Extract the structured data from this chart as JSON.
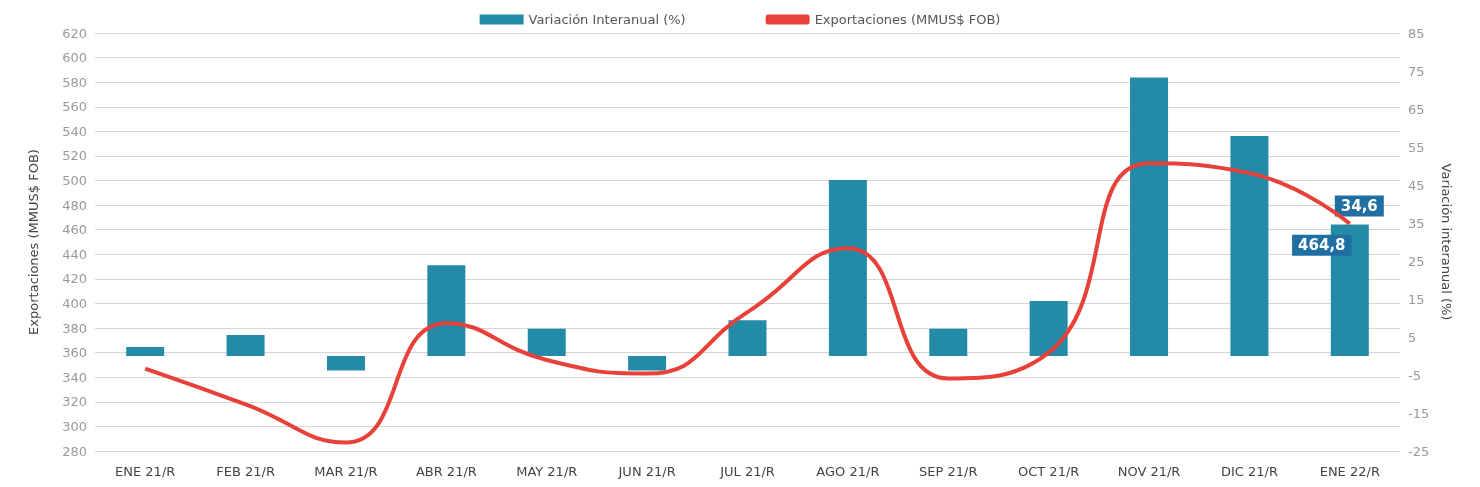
{
  "chart_data": {
    "type": "bar",
    "xlabel": null,
    "ylabel": "Exportaciones (MMUS$ FOB)",
    "y2label": "Variación interanual (%)",
    "categories": [
      "ENE 21/R",
      "FEB 21/R",
      "MAR 21/R",
      "ABR 21/R",
      "MAY 21/R",
      "JUN 21/R",
      "JUL 21/R",
      "AGO 21/R",
      "SEP 21/R",
      "OCT 21/R",
      "NOV 21/R",
      "DIC 21/R",
      "ENE 22/R"
    ],
    "series": [
      {
        "name": "Variación Interanual (%)",
        "axis": "y2",
        "color": "#238ba8",
        "values": [
          2.4,
          5.5,
          -3.8,
          23.9,
          7.2,
          -3.8,
          9.4,
          46.3,
          7.2,
          14.5,
          73.3,
          57.9,
          34.6
        ],
        "value_labels": [
          null,
          null,
          null,
          null,
          null,
          null,
          null,
          null,
          null,
          null,
          null,
          null,
          "34,6"
        ]
      },
      {
        "name": "Exportaciones (MMUS$ FOB)",
        "type": "line",
        "color": "#e8413a",
        "values": [
          347,
          318,
          287,
          384,
          354,
          343,
          393,
          445,
          339,
          360,
          514,
          506,
          464.8
        ],
        "value_labels": [
          null,
          null,
          null,
          null,
          null,
          null,
          null,
          null,
          null,
          null,
          null,
          null,
          "464,8"
        ]
      }
    ],
    "ylim": [
      280,
      620
    ],
    "yticks": [
      280,
      300,
      320,
      340,
      360,
      380,
      400,
      420,
      440,
      460,
      480,
      500,
      520,
      540,
      560,
      580,
      600,
      620
    ],
    "y2lim": [
      -25,
      85
    ],
    "y2ticks": [
      -25,
      -15,
      -5,
      5,
      15,
      25,
      35,
      45,
      55,
      65,
      75,
      85
    ],
    "grid": "y",
    "legend": "top",
    "marker": "none",
    "line_style": "solid"
  }
}
